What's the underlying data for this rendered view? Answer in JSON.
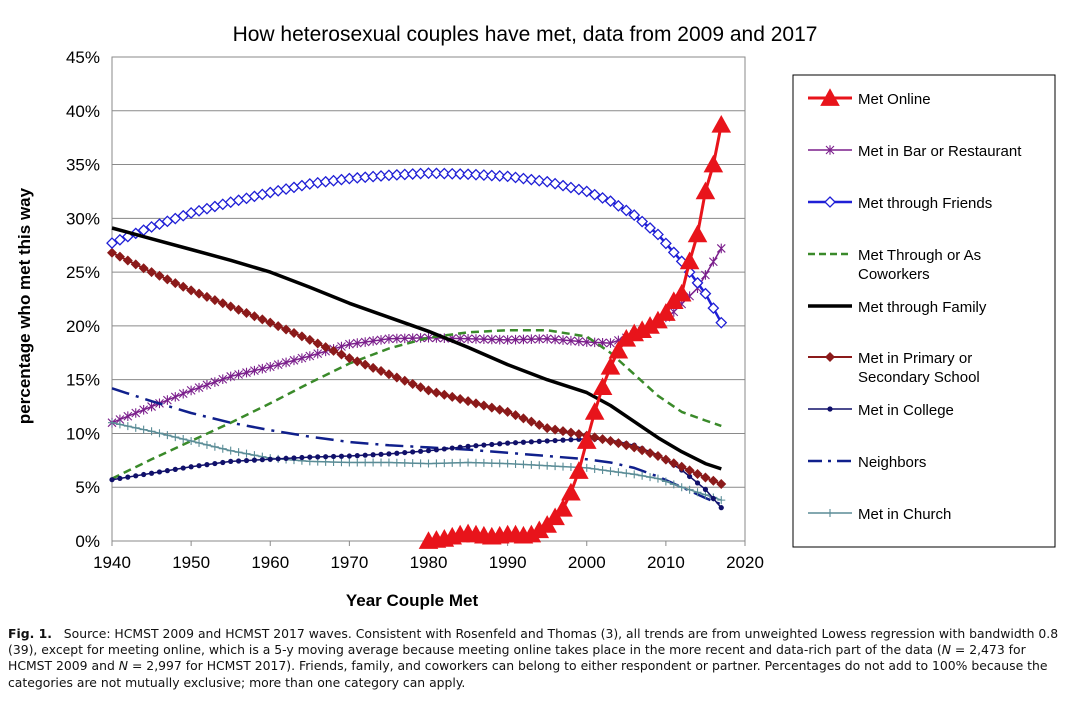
{
  "chart_data": {
    "type": "line",
    "title": "How heterosexual couples have met, data from 2009 and 2017",
    "xlabel": "Year Couple Met",
    "ylabel": "percentage who met this way",
    "xlim": [
      1940,
      2020
    ],
    "ylim": [
      0,
      45
    ],
    "x_ticks": [
      "1940",
      "1950",
      "1960",
      "1970",
      "1980",
      "1990",
      "2000",
      "2010",
      "2020"
    ],
    "y_ticks": [
      "0%",
      "5%",
      "10%",
      "15%",
      "20%",
      "25%",
      "30%",
      "35%",
      "40%",
      "45%"
    ],
    "grid": "horizontal",
    "legend_position": "right",
    "series": [
      {
        "name": "Met Online",
        "color": "#e8141b",
        "marker": "triangle",
        "dash": "solid",
        "width": 3,
        "points": [
          [
            1980,
            0
          ],
          [
            1981,
            0.1
          ],
          [
            1982,
            0.2
          ],
          [
            1983,
            0.4
          ],
          [
            1984,
            0.6
          ],
          [
            1985,
            0.7
          ],
          [
            1986,
            0.6
          ],
          [
            1987,
            0.5
          ],
          [
            1988,
            0.4
          ],
          [
            1989,
            0.5
          ],
          [
            1990,
            0.6
          ],
          [
            1991,
            0.6
          ],
          [
            1992,
            0.5
          ],
          [
            1993,
            0.6
          ],
          [
            1994,
            1.0
          ],
          [
            1995,
            1.5
          ],
          [
            1996,
            2.2
          ],
          [
            1997,
            3.0
          ],
          [
            1998,
            4.5
          ],
          [
            1999,
            6.5
          ],
          [
            2000,
            9.3
          ],
          [
            2001,
            12.0
          ],
          [
            2002,
            14.3
          ],
          [
            2003,
            16.2
          ],
          [
            2004,
            17.7
          ],
          [
            2005,
            18.8
          ],
          [
            2006,
            19.3
          ],
          [
            2007,
            19.6
          ],
          [
            2008,
            20.0
          ],
          [
            2009,
            20.5
          ],
          [
            2010,
            21.2
          ],
          [
            2011,
            22.3
          ],
          [
            2012,
            23.0
          ],
          [
            2013,
            26.0
          ],
          [
            2014,
            28.5
          ],
          [
            2015,
            32.5
          ],
          [
            2016,
            35.0
          ],
          [
            2017,
            38.7
          ]
        ]
      },
      {
        "name": "Met in Bar or Restaurant",
        "color": "#7b1f8c",
        "marker": "star",
        "dash": "solid",
        "width": 1.5,
        "points": [
          [
            1940,
            11.0
          ],
          [
            1945,
            12.5
          ],
          [
            1950,
            14.0
          ],
          [
            1955,
            15.3
          ],
          [
            1960,
            16.2
          ],
          [
            1965,
            17.2
          ],
          [
            1970,
            18.3
          ],
          [
            1975,
            18.8
          ],
          [
            1980,
            18.9
          ],
          [
            1985,
            18.8
          ],
          [
            1990,
            18.7
          ],
          [
            1995,
            18.8
          ],
          [
            2000,
            18.5
          ],
          [
            2003,
            18.4
          ],
          [
            2005,
            18.9
          ],
          [
            2008,
            19.8
          ],
          [
            2011,
            21.3
          ],
          [
            2014,
            23.5
          ],
          [
            2017,
            27.2
          ]
        ]
      },
      {
        "name": "Met through Friends",
        "color": "#1f1fd6",
        "marker": "diamond-open",
        "dash": "solid",
        "width": 2.5,
        "points": [
          [
            1940,
            27.7
          ],
          [
            1945,
            29.2
          ],
          [
            1950,
            30.5
          ],
          [
            1955,
            31.5
          ],
          [
            1960,
            32.4
          ],
          [
            1965,
            33.2
          ],
          [
            1970,
            33.7
          ],
          [
            1975,
            34.0
          ],
          [
            1980,
            34.2
          ],
          [
            1985,
            34.1
          ],
          [
            1990,
            33.9
          ],
          [
            1995,
            33.4
          ],
          [
            2000,
            32.5
          ],
          [
            2003,
            31.6
          ],
          [
            2006,
            30.3
          ],
          [
            2009,
            28.5
          ],
          [
            2012,
            26.0
          ],
          [
            2015,
            23.0
          ],
          [
            2017,
            20.3
          ]
        ]
      },
      {
        "name": "Met Through or As Coworkers",
        "color": "#3a8a2a",
        "marker": "none",
        "dash": "dashed",
        "width": 2.5,
        "points": [
          [
            1940,
            5.8
          ],
          [
            1945,
            7.6
          ],
          [
            1950,
            9.3
          ],
          [
            1955,
            11.0
          ],
          [
            1960,
            12.8
          ],
          [
            1965,
            14.7
          ],
          [
            1970,
            16.5
          ],
          [
            1975,
            17.9
          ],
          [
            1980,
            18.9
          ],
          [
            1985,
            19.4
          ],
          [
            1990,
            19.6
          ],
          [
            1995,
            19.6
          ],
          [
            2000,
            19.0
          ],
          [
            2003,
            17.5
          ],
          [
            2006,
            15.5
          ],
          [
            2009,
            13.5
          ],
          [
            2012,
            12.0
          ],
          [
            2015,
            11.2
          ],
          [
            2017,
            10.7
          ]
        ]
      },
      {
        "name": "Met through Family",
        "color": "#000000",
        "marker": "none",
        "dash": "solid",
        "width": 3.5,
        "points": [
          [
            1940,
            29.1
          ],
          [
            1945,
            28.1
          ],
          [
            1950,
            27.1
          ],
          [
            1955,
            26.1
          ],
          [
            1960,
            25.0
          ],
          [
            1965,
            23.6
          ],
          [
            1970,
            22.1
          ],
          [
            1975,
            20.8
          ],
          [
            1980,
            19.5
          ],
          [
            1985,
            18.0
          ],
          [
            1990,
            16.4
          ],
          [
            1995,
            15.0
          ],
          [
            2000,
            13.8
          ],
          [
            2003,
            12.6
          ],
          [
            2006,
            11.1
          ],
          [
            2009,
            9.6
          ],
          [
            2012,
            8.3
          ],
          [
            2015,
            7.2
          ],
          [
            2017,
            6.7
          ]
        ]
      },
      {
        "name": "Met in Primary or Secondary School",
        "color": "#8b1a1a",
        "marker": "diamond",
        "dash": "solid",
        "width": 2,
        "points": [
          [
            1940,
            26.8
          ],
          [
            1945,
            25.0
          ],
          [
            1950,
            23.3
          ],
          [
            1955,
            21.8
          ],
          [
            1960,
            20.3
          ],
          [
            1965,
            18.7
          ],
          [
            1970,
            17.0
          ],
          [
            1975,
            15.5
          ],
          [
            1980,
            14.0
          ],
          [
            1985,
            13.0
          ],
          [
            1990,
            12.0
          ],
          [
            1995,
            10.5
          ],
          [
            2000,
            9.8
          ],
          [
            2003,
            9.3
          ],
          [
            2006,
            8.7
          ],
          [
            2009,
            7.9
          ],
          [
            2012,
            6.9
          ],
          [
            2015,
            5.9
          ],
          [
            2017,
            5.3
          ]
        ]
      },
      {
        "name": "Met in College",
        "color": "#10106a",
        "marker": "dot",
        "dash": "solid",
        "width": 1.5,
        "points": [
          [
            1940,
            5.7
          ],
          [
            1945,
            6.3
          ],
          [
            1950,
            6.9
          ],
          [
            1955,
            7.4
          ],
          [
            1960,
            7.6
          ],
          [
            1965,
            7.8
          ],
          [
            1970,
            7.9
          ],
          [
            1975,
            8.1
          ],
          [
            1980,
            8.4
          ],
          [
            1985,
            8.8
          ],
          [
            1990,
            9.1
          ],
          [
            1995,
            9.3
          ],
          [
            2000,
            9.5
          ],
          [
            2003,
            9.4
          ],
          [
            2006,
            8.9
          ],
          [
            2009,
            8.0
          ],
          [
            2012,
            6.6
          ],
          [
            2015,
            4.8
          ],
          [
            2017,
            3.1
          ]
        ]
      },
      {
        "name": "Neighbors",
        "color": "#10208c",
        "marker": "none",
        "dash": "dashdot",
        "width": 2.5,
        "points": [
          [
            1940,
            14.2
          ],
          [
            1945,
            13.0
          ],
          [
            1950,
            11.9
          ],
          [
            1955,
            11.0
          ],
          [
            1960,
            10.3
          ],
          [
            1965,
            9.7
          ],
          [
            1970,
            9.2
          ],
          [
            1975,
            8.9
          ],
          [
            1980,
            8.7
          ],
          [
            1985,
            8.5
          ],
          [
            1990,
            8.2
          ],
          [
            1995,
            7.9
          ],
          [
            2000,
            7.6
          ],
          [
            2003,
            7.3
          ],
          [
            2006,
            6.8
          ],
          [
            2009,
            6.0
          ],
          [
            2012,
            5.0
          ],
          [
            2015,
            4.0
          ],
          [
            2017,
            3.4
          ]
        ]
      },
      {
        "name": "Met in Church",
        "color": "#5a8c96",
        "marker": "plus",
        "dash": "solid",
        "width": 1.5,
        "points": [
          [
            1940,
            11.0
          ],
          [
            1945,
            10.2
          ],
          [
            1950,
            9.3
          ],
          [
            1955,
            8.4
          ],
          [
            1960,
            7.7
          ],
          [
            1965,
            7.4
          ],
          [
            1970,
            7.3
          ],
          [
            1975,
            7.3
          ],
          [
            1980,
            7.2
          ],
          [
            1985,
            7.3
          ],
          [
            1990,
            7.2
          ],
          [
            1995,
            7.0
          ],
          [
            2000,
            6.8
          ],
          [
            2003,
            6.5
          ],
          [
            2006,
            6.2
          ],
          [
            2009,
            5.8
          ],
          [
            2012,
            5.0
          ],
          [
            2015,
            4.3
          ],
          [
            2017,
            3.8
          ]
        ]
      }
    ]
  },
  "caption": {
    "label": "Fig. 1.",
    "part1": "Source: HCMST 2009 and HCMST 2017 waves. Consistent with Rosenfeld and Thomas (3), all trends are from unweighted Lowess regression with bandwidth 0.8 (39), except for meeting online, which is a 5-y moving average because meeting online takes place in the more recent and data-rich part of the data (",
    "n_symbol": "N",
    "part2": " = 2,473 for HCMST 2009 and ",
    "part3": " = 2,997 for HCMST 2017). Friends, family, and coworkers can belong to either respondent or partner. Percentages do not add to 100% because the categories are not mutually exclusive; more than one category can apply."
  }
}
